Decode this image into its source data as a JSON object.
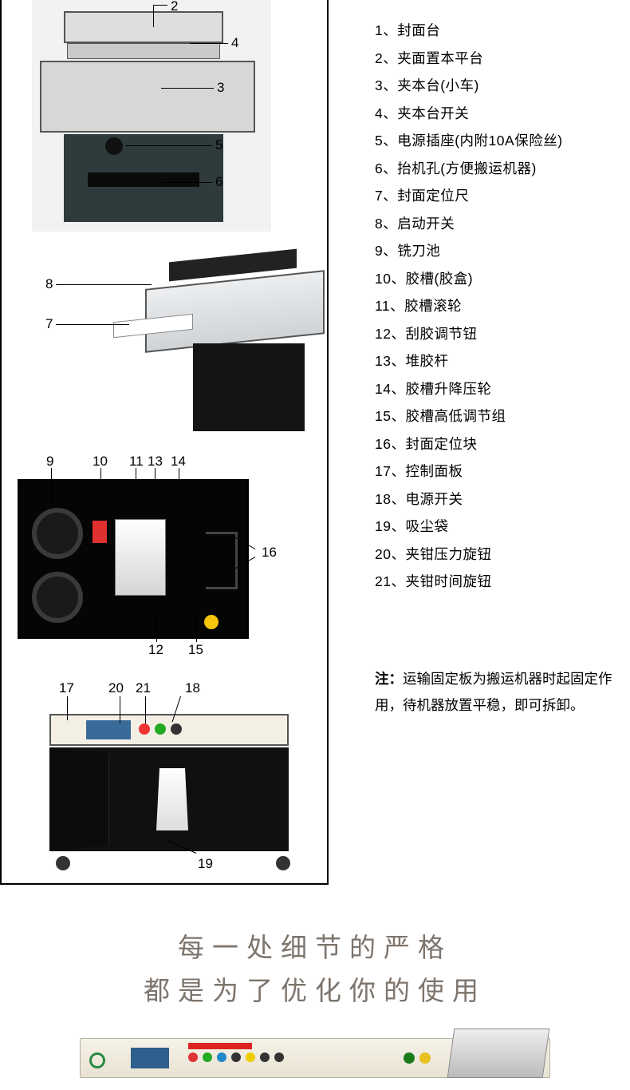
{
  "parts": [
    {
      "n": "1",
      "sep": "、",
      "name": "封面台"
    },
    {
      "n": "2",
      "sep": "、",
      "name": "夹面置本平台"
    },
    {
      "n": "3",
      "sep": "、",
      "name": "夹本台(小车)"
    },
    {
      "n": "4",
      "sep": "、",
      "name": "夹本台开关"
    },
    {
      "n": "5",
      "sep": "、",
      "name": "电源插座(内附10A保险丝)"
    },
    {
      "n": "6",
      "sep": "、",
      "name": "抬机孔(方便搬运机器)"
    },
    {
      "n": "7",
      "sep": "、",
      "name": "封面定位尺"
    },
    {
      "n": "8",
      "sep": "、",
      "name": "启动开关"
    },
    {
      "n": "9",
      "sep": "、",
      "name": "铣刀池"
    },
    {
      "n": "10",
      "sep": "、",
      "name": "胶槽(胶盒)"
    },
    {
      "n": "11",
      "sep": "、",
      "name": "胶槽滚轮"
    },
    {
      "n": "12",
      "sep": "、",
      "name": "刮胶调节钮"
    },
    {
      "n": "13",
      "sep": "、",
      "name": "堆胶杆"
    },
    {
      "n": "14",
      "sep": "、",
      "name": "胶槽升降压轮"
    },
    {
      "n": "15",
      "sep": "、",
      "name": "胶槽高低调节组"
    },
    {
      "n": "16",
      "sep": "、",
      "name": "封面定位块"
    },
    {
      "n": "17",
      "sep": "、",
      "name": "控制面板"
    },
    {
      "n": "18",
      "sep": "、",
      "name": "电源开关"
    },
    {
      "n": "19",
      "sep": "、",
      "name": "吸尘袋"
    },
    {
      "n": "20",
      "sep": "、",
      "name": "夹钳压力旋钮"
    },
    {
      "n": "21",
      "sep": "、",
      "name": "夹钳时间旋钮"
    }
  ],
  "note": {
    "label": "注：",
    "text": "运输固定板为搬运机器时起固定作用，待机器放置平稳，即可拆卸。"
  },
  "slogan": {
    "line1": "每一处细节的严格",
    "line2": "都是为了优化你的使用"
  },
  "callouts": {
    "fig1": {
      "c2": "2",
      "c3": "3",
      "c4": "4",
      "c5": "5",
      "c6": "6"
    },
    "fig2": {
      "c7": "7",
      "c8": "8"
    },
    "fig3": {
      "c9": "9",
      "c10": "10",
      "c11": "11",
      "c12": "12",
      "c13": "13",
      "c14": "14",
      "c15": "15",
      "c16": "16"
    },
    "fig4": {
      "c17": "17",
      "c18": "18",
      "c19": "19",
      "c20": "20",
      "c21": "21"
    }
  },
  "styling": {
    "page_bg": "#ffffff",
    "text_color": "#000000",
    "slogan_color": "#7d746c",
    "list_fontsize_pt": 13,
    "slogan_fontsize_pt": 25,
    "border_color": "#000000",
    "button_colors": [
      "#e33333",
      "#22aa22",
      "#333333",
      "#f6c40a",
      "#3a6a9a"
    ],
    "leader_color": "#000000"
  }
}
